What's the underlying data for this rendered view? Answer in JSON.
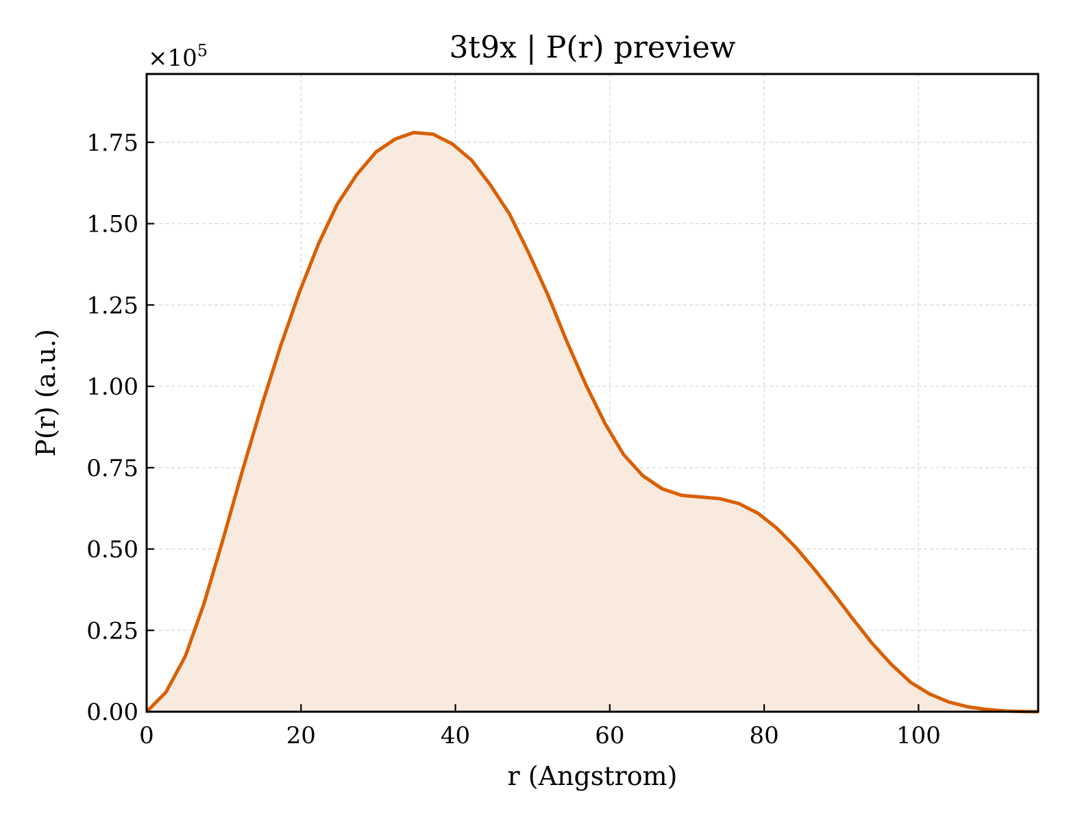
{
  "chart_data": {
    "type": "area",
    "title": "3t9x | P(r) preview",
    "xlabel": "r (Angstrom)",
    "ylabel": "P(r) (a.u.)",
    "y_offset_text": "×10",
    "y_offset_exponent": "5",
    "xlim": [
      0,
      115.5
    ],
    "ylim": [
      0,
      1.96
    ],
    "y_scale_factor": 100000,
    "x_ticks": [
      0,
      20,
      40,
      60,
      80,
      100
    ],
    "x_tick_labels": [
      "0",
      "20",
      "40",
      "60",
      "80",
      "100"
    ],
    "y_ticks": [
      0,
      0.25,
      0.5,
      0.75,
      1.0,
      1.25,
      1.5,
      1.75
    ],
    "y_tick_labels": [
      "0.00",
      "0.25",
      "0.50",
      "0.75",
      "1.00",
      "1.25",
      "1.50",
      "1.75"
    ],
    "grid": true,
    "colors": {
      "line": "#d95f02",
      "fill": "#f9eadf"
    },
    "series": [
      {
        "x": [
          0,
          2.5,
          5,
          7.4,
          9.9,
          12.4,
          14.9,
          17.3,
          19.8,
          22.3,
          24.7,
          27.2,
          29.7,
          32.2,
          34.6,
          37.1,
          39.6,
          42.1,
          44.5,
          47.0,
          49.5,
          52.0,
          54.4,
          56.9,
          59.4,
          61.8,
          64.3,
          66.8,
          69.3,
          71.7,
          74.2,
          76.7,
          79.2,
          81.6,
          84.1,
          86.6,
          89.1,
          91.5,
          94.0,
          96.5,
          99.0,
          101.4,
          103.9,
          106.4,
          108.8,
          111.3,
          113.8,
          115.5
        ],
        "values": [
          0,
          0.06,
          0.17,
          0.33,
          0.53,
          0.74,
          0.94,
          1.12,
          1.29,
          1.44,
          1.56,
          1.65,
          1.72,
          1.76,
          1.78,
          1.775,
          1.745,
          1.695,
          1.62,
          1.53,
          1.41,
          1.28,
          1.14,
          1.005,
          0.885,
          0.79,
          0.725,
          0.685,
          0.665,
          0.66,
          0.655,
          0.64,
          0.61,
          0.565,
          0.505,
          0.435,
          0.36,
          0.285,
          0.21,
          0.145,
          0.09,
          0.055,
          0.03,
          0.015,
          0.007,
          0.002,
          0.0005,
          0
        ]
      }
    ]
  }
}
